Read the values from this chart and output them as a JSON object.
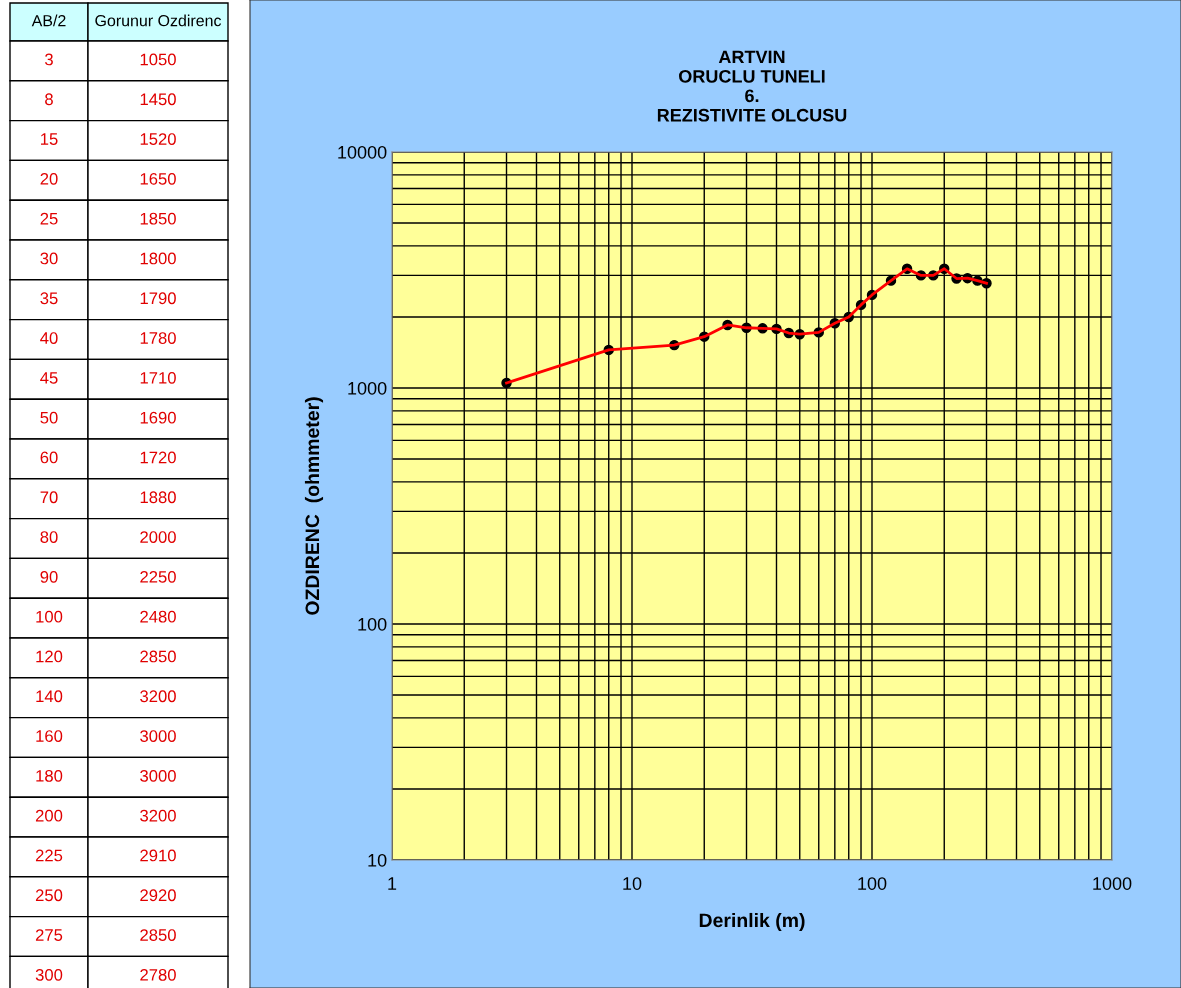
{
  "chart_data": [
    {
      "type": "other",
      "annotations": [
        "AB/2",
        "Gorunur Ozdirenc",
        "3",
        "1050",
        "8",
        "1450",
        "15",
        "1520",
        "20",
        "1650",
        "25",
        "1850",
        "30",
        "1800",
        "35",
        "1790",
        "40",
        "1780",
        "45",
        "1710",
        "50",
        "1690",
        "60",
        "1720",
        "70",
        "1880",
        "80",
        "2000",
        "90",
        "2250",
        "100",
        "2480",
        "120",
        "2850",
        "140",
        "3200",
        "160",
        "3000",
        "180",
        "3000",
        "200",
        "3200",
        "225",
        "2910",
        "250",
        "2920",
        "275",
        "2850",
        "300",
        "2780"
      ]
    },
    {
      "type": "line",
      "title": "ARTVIN\nORUCLU TUNELI\n6.\nREZISTIVITE OLCUSU",
      "xlabel": "Derinlik (m)",
      "ylabel": "OZDIRENC  (ohmmeter)",
      "x": [
        3,
        8,
        15,
        20,
        25,
        30,
        35,
        40,
        45,
        50,
        60,
        70,
        80,
        90,
        100,
        120,
        140,
        160,
        180,
        200,
        225,
        250,
        275,
        300
      ],
      "series": [
        {
          "color": "#ff0000",
          "values": [
            1050,
            1450,
            1520,
            1650,
            1850,
            1800,
            1790,
            1780,
            1710,
            1690,
            1720,
            1880,
            2000,
            2250,
            2480,
            2850,
            3200,
            3000,
            3000,
            3200,
            2910,
            2920,
            2850,
            2780
          ]
        }
      ],
      "log": "xy",
      "xlim": [
        1,
        1000
      ],
      "ylim": [
        10,
        10000
      ],
      "xticks": [
        1,
        10,
        100,
        1000
      ],
      "yticks": [
        10,
        100,
        1000,
        10000
      ],
      "grid": true,
      "marker": "circle",
      "line_style": "solid"
    }
  ]
}
